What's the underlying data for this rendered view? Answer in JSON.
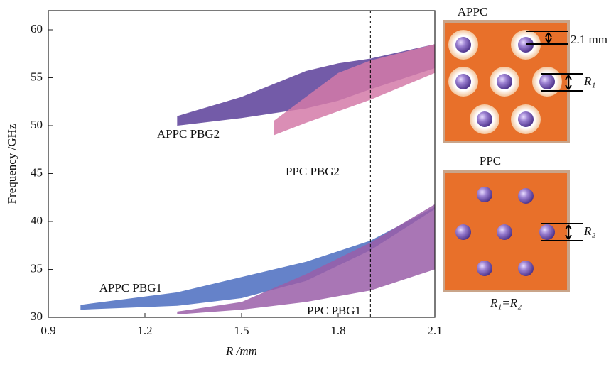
{
  "chart_data": {
    "type": "band",
    "x_label": "R /mm",
    "y_label": "Frequency /GHz",
    "xlim": [
      0.9,
      2.1
    ],
    "xticks": [
      0.9,
      1.2,
      1.5,
      1.8,
      2.1
    ],
    "ylim": [
      30,
      62
    ],
    "yticks": [
      30,
      35,
      40,
      45,
      50,
      55,
      60
    ],
    "marker_x": 1.9,
    "series": [
      {
        "name": "APPC PBG2",
        "color": "#5a3e99",
        "x": [
          1.3,
          1.5,
          1.7,
          1.8,
          1.9,
          2.1
        ],
        "upper": [
          51,
          53,
          55.7,
          56.5,
          57,
          58.5
        ],
        "lower": [
          50,
          50.8,
          51.8,
          52.6,
          53.8,
          56
        ]
      },
      {
        "name": "PPC PBG2",
        "color": "#d47aa8",
        "x": [
          1.6,
          1.7,
          1.8,
          1.9,
          2.1
        ],
        "upper": [
          50.5,
          53,
          55.5,
          56.8,
          58.5
        ],
        "lower": [
          49,
          50.3,
          51.5,
          52.7,
          55.5
        ]
      },
      {
        "name": "APPC PBG1",
        "color": "#4a6cc0",
        "x": [
          1.0,
          1.3,
          1.5,
          1.7,
          1.9,
          2.1
        ],
        "upper": [
          31.3,
          32.6,
          34.2,
          35.8,
          38,
          41.5
        ],
        "lower": [
          30.8,
          31.2,
          32,
          33.8,
          37,
          41.3
        ]
      },
      {
        "name": "PPC PBG1",
        "color": "#9a5ea8",
        "x": [
          1.3,
          1.5,
          1.7,
          1.9,
          2.1
        ],
        "upper": [
          30.6,
          31.6,
          34.5,
          37.8,
          41.8
        ],
        "lower": [
          30.3,
          30.8,
          31.6,
          32.8,
          35
        ]
      }
    ]
  },
  "diagrams": {
    "appc_title": "APPC",
    "appc_gap": "2.1 mm",
    "appc_radius": "R₁",
    "ppc_title": "PPC",
    "ppc_radius": "R₂",
    "relation": "R₁=R₂"
  }
}
